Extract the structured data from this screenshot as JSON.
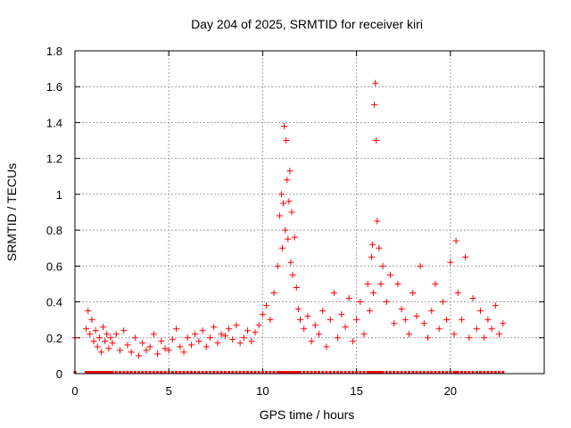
{
  "chart_data": {
    "type": "scatter",
    "title": "Day 204 of 2025, SRMTID for receiver kiri",
    "xlabel": "GPS time / hours",
    "ylabel": "SRMTID / TECUs",
    "xlim": [
      0,
      25
    ],
    "ylim": [
      0,
      1.8
    ],
    "x_ticks": [
      "0",
      "5",
      "10",
      "15",
      "20"
    ],
    "y_ticks": [
      "0",
      "0.2",
      "0.4",
      "0.6",
      "0.8",
      "1",
      "1.2",
      "1.4",
      "1.6",
      "1.8"
    ],
    "grid": true,
    "marker": "+",
    "color": "#ff0000",
    "series": [
      {
        "name": "SRMTID",
        "x": [
          0.0,
          0.6,
          0.7,
          0.8,
          0.9,
          1.0,
          1.1,
          1.2,
          1.3,
          1.4,
          1.5,
          1.6,
          1.7,
          1.8,
          1.9,
          2.0,
          2.2,
          2.4,
          2.6,
          2.8,
          3.0,
          3.2,
          3.4,
          3.6,
          3.8,
          4.0,
          4.2,
          4.4,
          4.6,
          4.8,
          5.0,
          5.2,
          5.4,
          5.6,
          5.8,
          6.0,
          6.2,
          6.4,
          6.6,
          6.8,
          7.0,
          7.2,
          7.4,
          7.6,
          7.8,
          8.0,
          8.2,
          8.4,
          8.6,
          8.8,
          9.0,
          9.2,
          9.4,
          9.6,
          9.8,
          10.0,
          10.2,
          10.4,
          10.6,
          10.8,
          10.9,
          11.0,
          11.05,
          11.1,
          11.15,
          11.2,
          11.25,
          11.3,
          11.35,
          11.4,
          11.45,
          11.5,
          11.55,
          11.6,
          11.7,
          11.8,
          11.9,
          12.0,
          12.2,
          12.4,
          12.6,
          12.8,
          13.0,
          13.2,
          13.4,
          13.6,
          13.8,
          14.0,
          14.2,
          14.4,
          14.6,
          14.8,
          15.0,
          15.2,
          15.4,
          15.6,
          15.7,
          15.8,
          15.85,
          15.9,
          15.95,
          16.0,
          16.05,
          16.1,
          16.2,
          16.3,
          16.4,
          16.6,
          16.8,
          17.0,
          17.2,
          17.4,
          17.6,
          17.8,
          18.0,
          18.2,
          18.4,
          18.6,
          18.8,
          19.0,
          19.2,
          19.4,
          19.6,
          19.8,
          20.0,
          20.2,
          20.3,
          20.4,
          20.6,
          20.8,
          21.0,
          21.2,
          21.4,
          21.6,
          21.8,
          22.0,
          22.2,
          22.4,
          22.6,
          22.8
        ],
        "y": [
          0.2,
          0.25,
          0.35,
          0.22,
          0.3,
          0.18,
          0.24,
          0.15,
          0.2,
          0.12,
          0.26,
          0.18,
          0.22,
          0.14,
          0.2,
          0.17,
          0.22,
          0.13,
          0.24,
          0.16,
          0.12,
          0.2,
          0.1,
          0.17,
          0.13,
          0.15,
          0.22,
          0.11,
          0.18,
          0.14,
          0.13,
          0.19,
          0.25,
          0.15,
          0.12,
          0.2,
          0.16,
          0.22,
          0.18,
          0.24,
          0.15,
          0.2,
          0.26,
          0.17,
          0.22,
          0.21,
          0.25,
          0.19,
          0.27,
          0.17,
          0.2,
          0.24,
          0.18,
          0.23,
          0.27,
          0.33,
          0.38,
          0.3,
          0.45,
          0.6,
          0.88,
          1.0,
          0.7,
          0.95,
          1.38,
          0.8,
          1.3,
          1.08,
          0.75,
          0.96,
          1.13,
          0.62,
          0.9,
          0.55,
          0.76,
          0.48,
          0.36,
          0.3,
          0.25,
          0.32,
          0.18,
          0.27,
          0.22,
          0.35,
          0.15,
          0.3,
          0.45,
          0.2,
          0.33,
          0.26,
          0.42,
          0.18,
          0.3,
          0.4,
          0.22,
          0.5,
          0.35,
          0.65,
          0.72,
          0.45,
          1.5,
          1.62,
          1.3,
          0.85,
          0.7,
          0.5,
          0.6,
          0.4,
          0.55,
          0.28,
          0.5,
          0.36,
          0.3,
          0.22,
          0.45,
          0.32,
          0.6,
          0.28,
          0.2,
          0.35,
          0.5,
          0.25,
          0.4,
          0.3,
          0.62,
          0.22,
          0.74,
          0.45,
          0.3,
          0.65,
          0.2,
          0.42,
          0.25,
          0.35,
          0.2,
          0.3,
          0.25,
          0.38,
          0.22,
          0.28
        ]
      }
    ]
  }
}
